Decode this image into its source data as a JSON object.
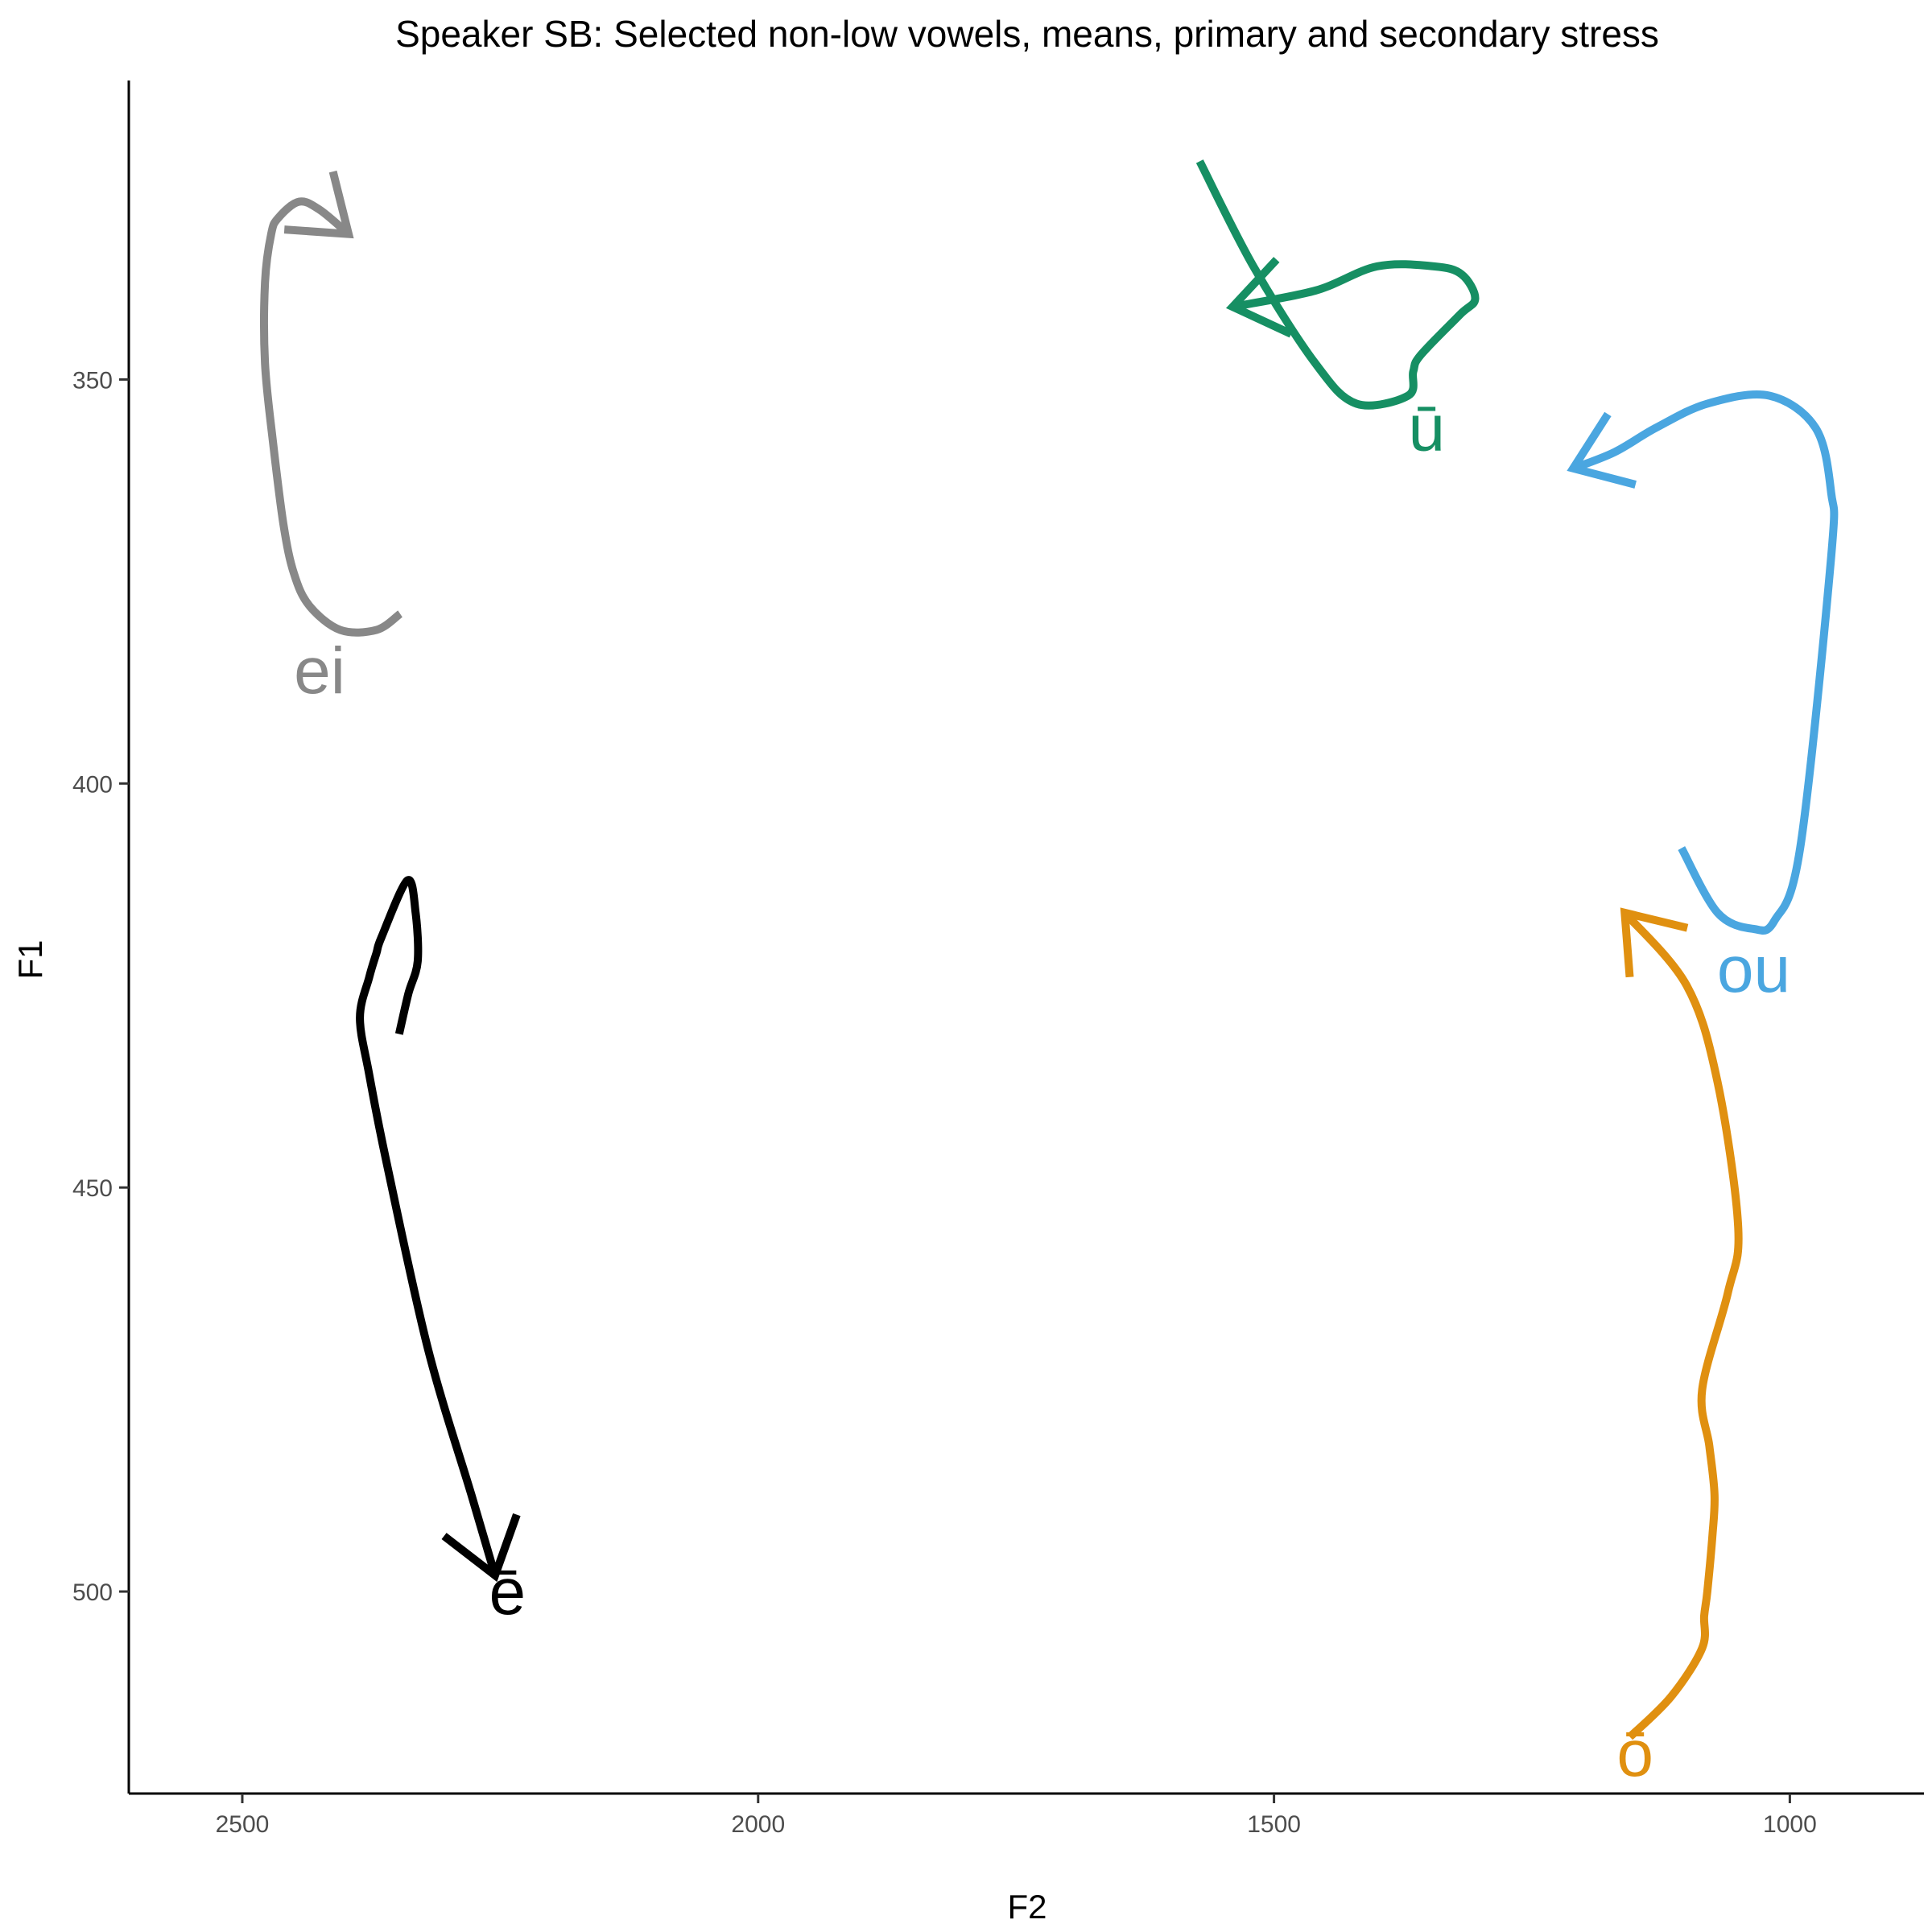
{
  "chart_data": {
    "type": "line",
    "title": "Speaker SB: Selected non-low vowels, means, primary and secondary stress",
    "xlabel": "F2",
    "ylabel": "F1",
    "x_reversed": true,
    "y_reversed": true,
    "xlim": [
      2610,
      870
    ],
    "ylim": [
      313,
      525
    ],
    "xticks": [
      2500,
      2000,
      1500,
      1000
    ],
    "yticks": [
      350,
      400,
      450,
      500
    ],
    "grid": false,
    "legend": "none",
    "series": [
      {
        "name": "ei",
        "color": "#888888",
        "label_at": [
          2425,
          386
        ],
        "points": [
          [
            2347,
            379
          ],
          [
            2370,
            381
          ],
          [
            2405,
            381
          ],
          [
            2435,
            378
          ],
          [
            2450,
            374
          ],
          [
            2460,
            368
          ],
          [
            2470,
            358
          ],
          [
            2478,
            348
          ],
          [
            2478,
            338
          ],
          [
            2472,
            332
          ],
          [
            2465,
            330
          ],
          [
            2445,
            328
          ],
          [
            2425,
            329
          ],
          [
            2397,
            332
          ]
        ]
      },
      {
        "name": "ē",
        "color": "#000000",
        "label_at": [
          2243,
          500
        ],
        "points": [
          [
            2348,
            431
          ],
          [
            2339,
            426
          ],
          [
            2330,
            422
          ],
          [
            2332,
            416
          ],
          [
            2340,
            412
          ],
          [
            2365,
            419
          ],
          [
            2370,
            421
          ],
          [
            2377,
            424
          ],
          [
            2386,
            429
          ],
          [
            2377,
            436
          ],
          [
            2360,
            447
          ],
          [
            2320,
            470
          ],
          [
            2278,
            488
          ],
          [
            2255,
            498
          ]
        ]
      },
      {
        "name": "ū",
        "color": "#168f63",
        "label_at": [
          1352,
          356
        ],
        "points": [
          [
            1572,
            323
          ],
          [
            1520,
            336
          ],
          [
            1460,
            348
          ],
          [
            1420,
            353
          ],
          [
            1370,
            352
          ],
          [
            1365,
            349
          ],
          [
            1358,
            347
          ],
          [
            1320,
            342
          ],
          [
            1305,
            340
          ],
          [
            1318,
            337
          ],
          [
            1345,
            336
          ],
          [
            1400,
            336
          ],
          [
            1460,
            339
          ],
          [
            1540,
            341
          ]
        ]
      },
      {
        "name": "ou",
        "color": "#4aa6e0",
        "label_at": [
          1035,
          423
        ],
        "points": [
          [
            1105,
            408
          ],
          [
            1070,
            416
          ],
          [
            1035,
            418
          ],
          [
            1015,
            417
          ],
          [
            990,
            408
          ],
          [
            960,
            372
          ],
          [
            960,
            364
          ],
          [
            975,
            356
          ],
          [
            1020,
            352
          ],
          [
            1080,
            353
          ],
          [
            1130,
            356
          ],
          [
            1170,
            359
          ],
          [
            1210,
            361
          ]
        ]
      },
      {
        "name": "ō",
        "color": "#e09010",
        "label_at": [
          1150,
          520
        ],
        "points": [
          [
            1155,
            518
          ],
          [
            1115,
            513
          ],
          [
            1085,
            507
          ],
          [
            1083,
            503
          ],
          [
            1080,
            500
          ],
          [
            1075,
            493
          ],
          [
            1073,
            488
          ],
          [
            1078,
            482
          ],
          [
            1085,
            475
          ],
          [
            1060,
            463
          ],
          [
            1050,
            455
          ],
          [
            1070,
            437
          ],
          [
            1100,
            425
          ],
          [
            1160,
            416
          ]
        ]
      }
    ]
  }
}
